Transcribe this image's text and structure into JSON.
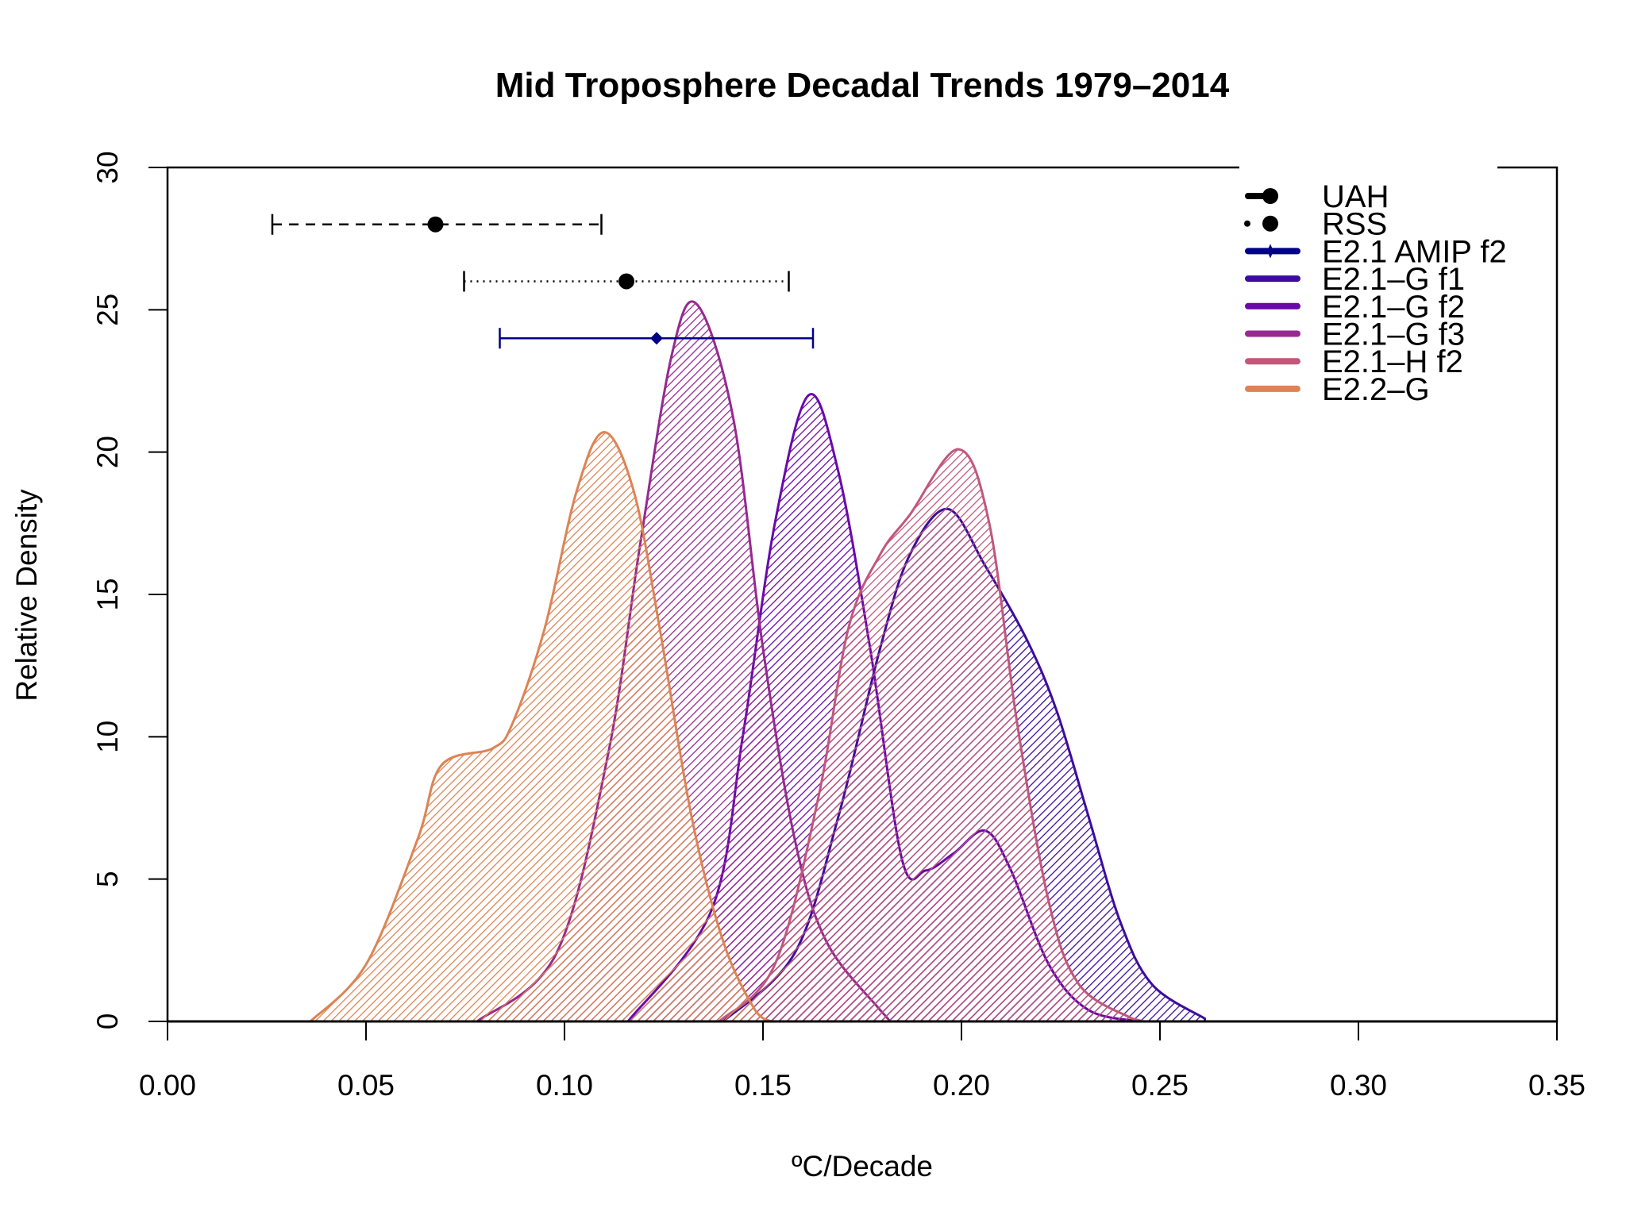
{
  "chart_data": {
    "type": "area",
    "title": "Mid Troposphere Decadal Trends 1979–2014",
    "xlabel": "ºC/Decade",
    "ylabel": "Relative Density",
    "xlim": [
      0,
      0.35
    ],
    "ylim": [
      0,
      30
    ],
    "xticks": [
      "0.00",
      "0.05",
      "0.10",
      "0.15",
      "0.20",
      "0.25",
      "0.30",
      "0.35"
    ],
    "yticks": [
      "0",
      "5",
      "10",
      "15",
      "20",
      "25",
      "30"
    ],
    "grid": false,
    "legend_position": "top-right",
    "fill": "diagonal-hatch",
    "observations": [
      {
        "name": "UAH",
        "center": 0.0675,
        "low": 0.0264,
        "high": 0.1093,
        "y": 28,
        "line": "dashed",
        "marker": "circle",
        "color": "#000000"
      },
      {
        "name": "RSS",
        "center": 0.1156,
        "low": 0.0747,
        "high": 0.1565,
        "y": 26,
        "line": "dotted",
        "marker": "circle",
        "color": "#000000"
      },
      {
        "name": "E2.1 AMIP f2",
        "center": 0.1232,
        "low": 0.0837,
        "high": 0.1626,
        "y": 24,
        "line": "solid",
        "marker": "diamond",
        "color": "#00008b"
      }
    ],
    "series": [
      {
        "name": "E2.1–G f1",
        "color": "#3d0c9e",
        "x": [
          0.14,
          0.158,
          0.169,
          0.1795,
          0.187,
          0.1966,
          0.206,
          0.2165,
          0.224,
          0.232,
          0.24,
          0.248,
          0.2613
        ],
        "y": [
          0,
          2.4,
          7.2,
          13.1,
          16.4,
          18.0,
          16.0,
          13.4,
          10.9,
          7.2,
          3.5,
          1.3,
          0.1
        ]
      },
      {
        "name": "E2.1–G f2",
        "color": "#6a08aa",
        "x": [
          0.116,
          0.137,
          0.145,
          0.153,
          0.1615,
          0.169,
          0.177,
          0.185,
          0.191,
          0.198,
          0.206,
          0.2125,
          0.222,
          0.232,
          0.245
        ],
        "y": [
          0,
          3.9,
          10.1,
          17.5,
          22.0,
          19.3,
          13.1,
          5.7,
          5.3,
          5.9,
          6.7,
          5.3,
          2.0,
          0.4,
          0
        ]
      },
      {
        "name": "E2.1–G f3",
        "color": "#952a8f",
        "x": [
          0.078,
          0.098,
          0.111,
          0.119,
          0.127,
          0.1333,
          0.1425,
          0.15,
          0.158,
          0.166,
          0.1795,
          0.182
        ],
        "y": [
          0,
          2.4,
          9.4,
          16.7,
          23.4,
          25.2,
          21.2,
          13.1,
          6.4,
          2.8,
          0.4,
          0
        ]
      },
      {
        "name": "E2.1–H f2",
        "color": "#c0587a",
        "x": [
          0.139,
          0.153,
          0.164,
          0.1715,
          0.1795,
          0.187,
          0.1993,
          0.207,
          0.214,
          0.222,
          0.2296,
          0.243,
          0.246
        ],
        "y": [
          0,
          2.0,
          7.9,
          13.8,
          16.4,
          17.8,
          20.1,
          17.5,
          10.5,
          4.2,
          1.3,
          0.1,
          0
        ]
      },
      {
        "name": "E2.2–G",
        "color": "#dc8455",
        "x": [
          0.036,
          0.05,
          0.063,
          0.069,
          0.082,
          0.087,
          0.095,
          0.103,
          0.11,
          0.1175,
          0.124,
          0.132,
          0.14,
          0.148,
          0.152
        ],
        "y": [
          0,
          2.0,
          6.4,
          9.0,
          9.6,
          10.5,
          13.8,
          18.6,
          20.7,
          18.6,
          13.8,
          7.2,
          2.8,
          0.4,
          0
        ]
      }
    ]
  }
}
